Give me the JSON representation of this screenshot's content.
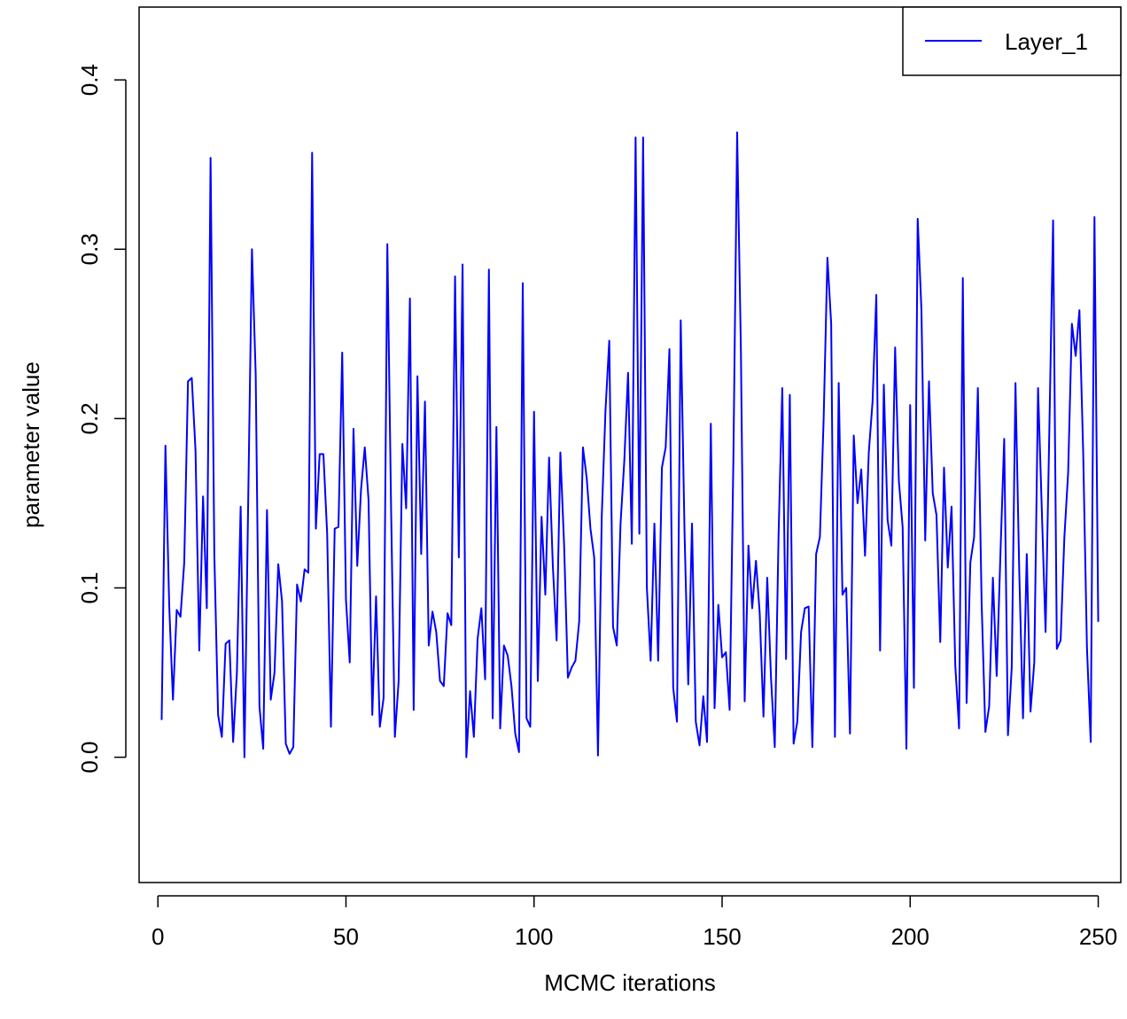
{
  "chart_data": {
    "type": "line",
    "title": "",
    "xlabel": "MCMC iterations",
    "ylabel": "parameter value",
    "xlim": [
      -5,
      256
    ],
    "ylim": [
      -0.074,
      0.443
    ],
    "xticks": [
      0,
      50,
      100,
      150,
      200,
      250
    ],
    "yticks": [
      0.0,
      0.1,
      0.2,
      0.3,
      0.4
    ],
    "xtick_labels": [
      "0",
      "50",
      "100",
      "150",
      "200",
      "250"
    ],
    "ytick_labels": [
      "0.0",
      "0.1",
      "0.2",
      "0.3",
      "0.4"
    ],
    "grid": false,
    "legend_position": "top-right",
    "series": [
      {
        "name": "Layer_1",
        "color": "#0000ff",
        "x": [
          1,
          2,
          3,
          4,
          5,
          6,
          7,
          8,
          9,
          10,
          11,
          12,
          13,
          14,
          15,
          16,
          17,
          18,
          19,
          20,
          21,
          22,
          23,
          24,
          25,
          26,
          27,
          28,
          29,
          30,
          31,
          32,
          33,
          34,
          35,
          36,
          37,
          38,
          39,
          40,
          41,
          42,
          43,
          44,
          45,
          46,
          47,
          48,
          49,
          50,
          51,
          52,
          53,
          54,
          55,
          56,
          57,
          58,
          59,
          60,
          61,
          62,
          63,
          64,
          65,
          66,
          67,
          68,
          69,
          70,
          71,
          72,
          73,
          74,
          75,
          76,
          77,
          78,
          79,
          80,
          81,
          82,
          83,
          84,
          85,
          86,
          87,
          88,
          89,
          90,
          91,
          92,
          93,
          94,
          95,
          96,
          97,
          98,
          99,
          100,
          101,
          102,
          103,
          104,
          105,
          106,
          107,
          108,
          109,
          110,
          111,
          112,
          113,
          114,
          115,
          116,
          117,
          118,
          119,
          120,
          121,
          122,
          123,
          124,
          125,
          126,
          127,
          128,
          129,
          130,
          131,
          132,
          133,
          134,
          135,
          136,
          137,
          138,
          139,
          140,
          141,
          142,
          143,
          144,
          145,
          146,
          147,
          148,
          149,
          150,
          151,
          152,
          153,
          154,
          155,
          156,
          157,
          158,
          159,
          160,
          161,
          162,
          163,
          164,
          165,
          166,
          167,
          168,
          169,
          170,
          171,
          172,
          173,
          174,
          175,
          176,
          177,
          178,
          179,
          180,
          181,
          182,
          183,
          184,
          185,
          186,
          187,
          188,
          189,
          190,
          191,
          192,
          193,
          194,
          195,
          196,
          197,
          198,
          199,
          200,
          201,
          202,
          203,
          204,
          205,
          206,
          207,
          208,
          209,
          210,
          211,
          212,
          213,
          214,
          215,
          216,
          217,
          218,
          219,
          220,
          221,
          222,
          223,
          224,
          225,
          226,
          227,
          228,
          229,
          230,
          231,
          232,
          233,
          234,
          235,
          236,
          237,
          238,
          239,
          240,
          241,
          242,
          243,
          244,
          245,
          246,
          247,
          248,
          249,
          250
        ],
        "values": [
          0.022,
          0.184,
          0.09,
          0.034,
          0.087,
          0.083,
          0.115,
          0.222,
          0.224,
          0.181,
          0.063,
          0.154,
          0.088,
          0.354,
          0.12,
          0.025,
          0.012,
          0.067,
          0.069,
          0.009,
          0.05,
          0.148,
          0.0,
          0.15,
          0.3,
          0.226,
          0.03,
          0.005,
          0.146,
          0.034,
          0.05,
          0.114,
          0.092,
          0.008,
          0.002,
          0.006,
          0.102,
          0.092,
          0.111,
          0.109,
          0.357,
          0.135,
          0.179,
          0.179,
          0.132,
          0.018,
          0.135,
          0.136,
          0.239,
          0.093,
          0.056,
          0.194,
          0.113,
          0.158,
          0.183,
          0.152,
          0.025,
          0.095,
          0.018,
          0.035,
          0.303,
          0.146,
          0.012,
          0.045,
          0.185,
          0.147,
          0.271,
          0.028,
          0.225,
          0.12,
          0.21,
          0.066,
          0.086,
          0.074,
          0.045,
          0.042,
          0.085,
          0.078,
          0.284,
          0.118,
          0.291,
          0.0,
          0.039,
          0.012,
          0.07,
          0.088,
          0.046,
          0.288,
          0.023,
          0.195,
          0.017,
          0.066,
          0.06,
          0.042,
          0.014,
          0.003,
          0.28,
          0.023,
          0.018,
          0.204,
          0.045,
          0.142,
          0.096,
          0.177,
          0.113,
          0.069,
          0.18,
          0.125,
          0.047,
          0.053,
          0.057,
          0.08,
          0.183,
          0.165,
          0.135,
          0.118,
          0.001,
          0.142,
          0.205,
          0.246,
          0.077,
          0.066,
          0.138,
          0.175,
          0.227,
          0.126,
          0.366,
          0.132,
          0.366,
          0.1,
          0.057,
          0.138,
          0.057,
          0.171,
          0.183,
          0.241,
          0.041,
          0.021,
          0.258,
          0.134,
          0.043,
          0.138,
          0.021,
          0.007,
          0.036,
          0.009,
          0.197,
          0.029,
          0.09,
          0.059,
          0.062,
          0.028,
          0.176,
          0.369,
          0.24,
          0.033,
          0.125,
          0.088,
          0.116,
          0.085,
          0.024,
          0.106,
          0.047,
          0.006,
          0.13,
          0.218,
          0.058,
          0.214,
          0.008,
          0.021,
          0.074,
          0.088,
          0.089,
          0.006,
          0.12,
          0.13,
          0.2,
          0.295,
          0.256,
          0.012,
          0.221,
          0.096,
          0.1,
          0.014,
          0.19,
          0.15,
          0.17,
          0.119,
          0.18,
          0.21,
          0.273,
          0.063,
          0.22,
          0.14,
          0.125,
          0.242,
          0.163,
          0.136,
          0.005,
          0.208,
          0.041,
          0.318,
          0.264,
          0.128,
          0.222,
          0.156,
          0.143,
          0.068,
          0.171,
          0.112,
          0.148,
          0.054,
          0.017,
          0.283,
          0.032,
          0.115,
          0.13,
          0.218,
          0.091,
          0.015,
          0.03,
          0.106,
          0.048,
          0.12,
          0.188,
          0.013,
          0.053,
          0.221,
          0.11,
          0.023,
          0.12,
          0.027,
          0.056,
          0.218,
          0.146,
          0.074,
          0.193,
          0.317,
          0.064,
          0.069,
          0.13,
          0.168,
          0.256,
          0.237,
          0.264,
          0.18,
          0.065,
          0.009,
          0.319,
          0.08
        ]
      }
    ]
  }
}
